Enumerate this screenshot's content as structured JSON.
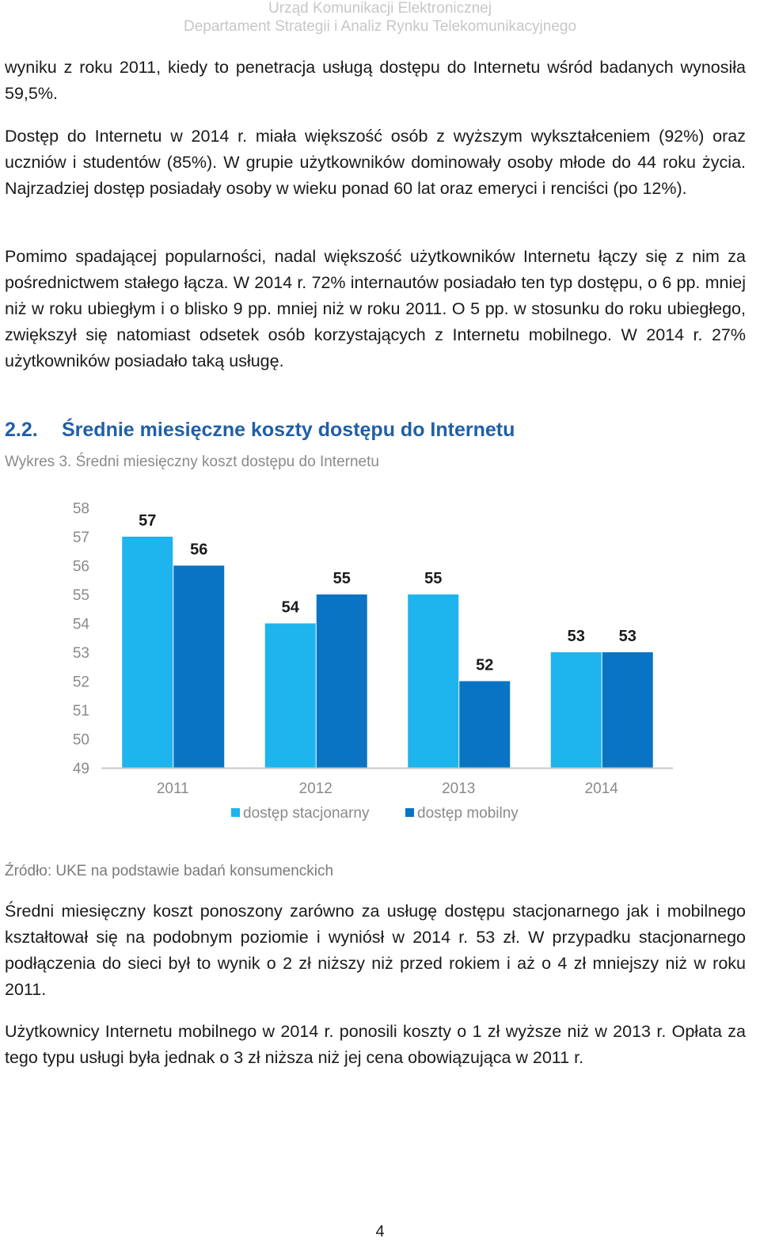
{
  "header": {
    "line1": "Urząd Komunikacji Elektronicznej",
    "line2": "Departament Strategii i Analiz Rynku Telekomunikacyjnego"
  },
  "paragraphs": [
    "wyniku z roku 2011, kiedy to penetracja usługą dostępu do Internetu wśród badanych wynosiła 59,5%.",
    "Dostęp do Internetu w 2014 r. miała większość osób z wyższym wykształceniem (92%) oraz uczniów i studentów (85%). W grupie użytkowników dominowały osoby młode do 44 roku życia. Najrzadziej dostęp posiadały osoby w wieku ponad 60 lat oraz emeryci i renciści (po 12%).",
    "Pomimo spadającej popularności, nadal większość użytkowników Internetu łączy się z nim za pośrednictwem stałego łącza. W 2014 r. 72% internautów posiadało ten typ dostępu, o 6 pp. mniej niż w roku ubiegłym i o blisko 9 pp. mniej niż w roku 2011. O 5 pp. w stosunku do roku ubiegłego, zwiększył się natomiast odsetek osób korzystających z Internetu mobilnego. W 2014 r. 27% użytkowników posiadało taką usługę."
  ],
  "section": {
    "number": "2.2.",
    "title": "Średnie miesięczne koszty dostępu do Internetu"
  },
  "figure_caption": "Wykres 3. Średni miesięczny koszt dostępu do Internetu",
  "chart_data": {
    "type": "bar",
    "categories": [
      "2011",
      "2012",
      "2013",
      "2014"
    ],
    "series": [
      {
        "name": "dostęp stacjonarny",
        "color": "#1eb4ee",
        "values": [
          57,
          54,
          55,
          53
        ]
      },
      {
        "name": "dostęp mobilny",
        "color": "#0a74c4",
        "values": [
          56,
          55,
          52,
          53
        ]
      }
    ],
    "ylim": [
      49,
      58
    ],
    "yticks": [
      58,
      57,
      56,
      55,
      54,
      53,
      52,
      51,
      50,
      49
    ],
    "grid": false,
    "legend": "bottom",
    "data_labels": true
  },
  "source": "Źródło: UKE na podstawie badań konsumenckich",
  "paragraphs_after": [
    "Średni miesięczny koszt ponoszony zarówno za usługę dostępu stacjonarnego jak i mobilnego kształtował się na podobnym poziomie i wyniósł w 2014 r. 53 zł. W przypadku stacjonarnego podłączenia do sieci był to wynik o 2 zł niższy niż przed rokiem i aż o 4 zł mniejszy niż w roku 2011.",
    "Użytkownicy Internetu mobilnego w 2014 r. ponosili koszty o 1 zł wyższe niż w 2013 r. Opłata za tego typu usługi była jednak o 3 zł niższa niż jej cena obowiązująca w 2011 r."
  ],
  "page_number": "4"
}
